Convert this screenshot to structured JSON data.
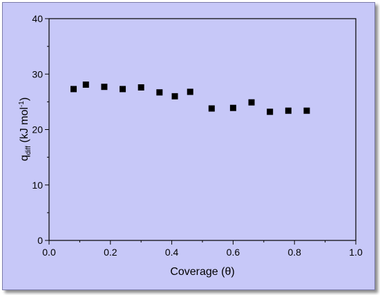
{
  "chart_data": {
    "type": "scatter",
    "title": "",
    "xlabel": "Coverage (θ)",
    "ylabel": {
      "base": "q",
      "subscript": "diff",
      "main": " (kJ mol",
      "superscript": "-1",
      "close": ")"
    },
    "xlim": [
      0.0,
      1.0
    ],
    "ylim": [
      0,
      40
    ],
    "xticks": [
      "0.0",
      "0.2",
      "0.4",
      "0.6",
      "0.8",
      "1.0"
    ],
    "yticks": [
      "0",
      "10",
      "20",
      "30",
      "40"
    ],
    "grid": false,
    "series": [
      {
        "marker": "square",
        "color": "#000000",
        "x": [
          0.08,
          0.12,
          0.18,
          0.24,
          0.3,
          0.36,
          0.41,
          0.46,
          0.53,
          0.6,
          0.66,
          0.72,
          0.78,
          0.84
        ],
        "y": [
          27.3,
          28.1,
          27.7,
          27.3,
          27.6,
          26.7,
          26.0,
          26.8,
          23.8,
          23.9,
          24.9,
          23.2,
          23.4,
          23.4
        ]
      }
    ],
    "background_color": "#c7c8f8"
  }
}
